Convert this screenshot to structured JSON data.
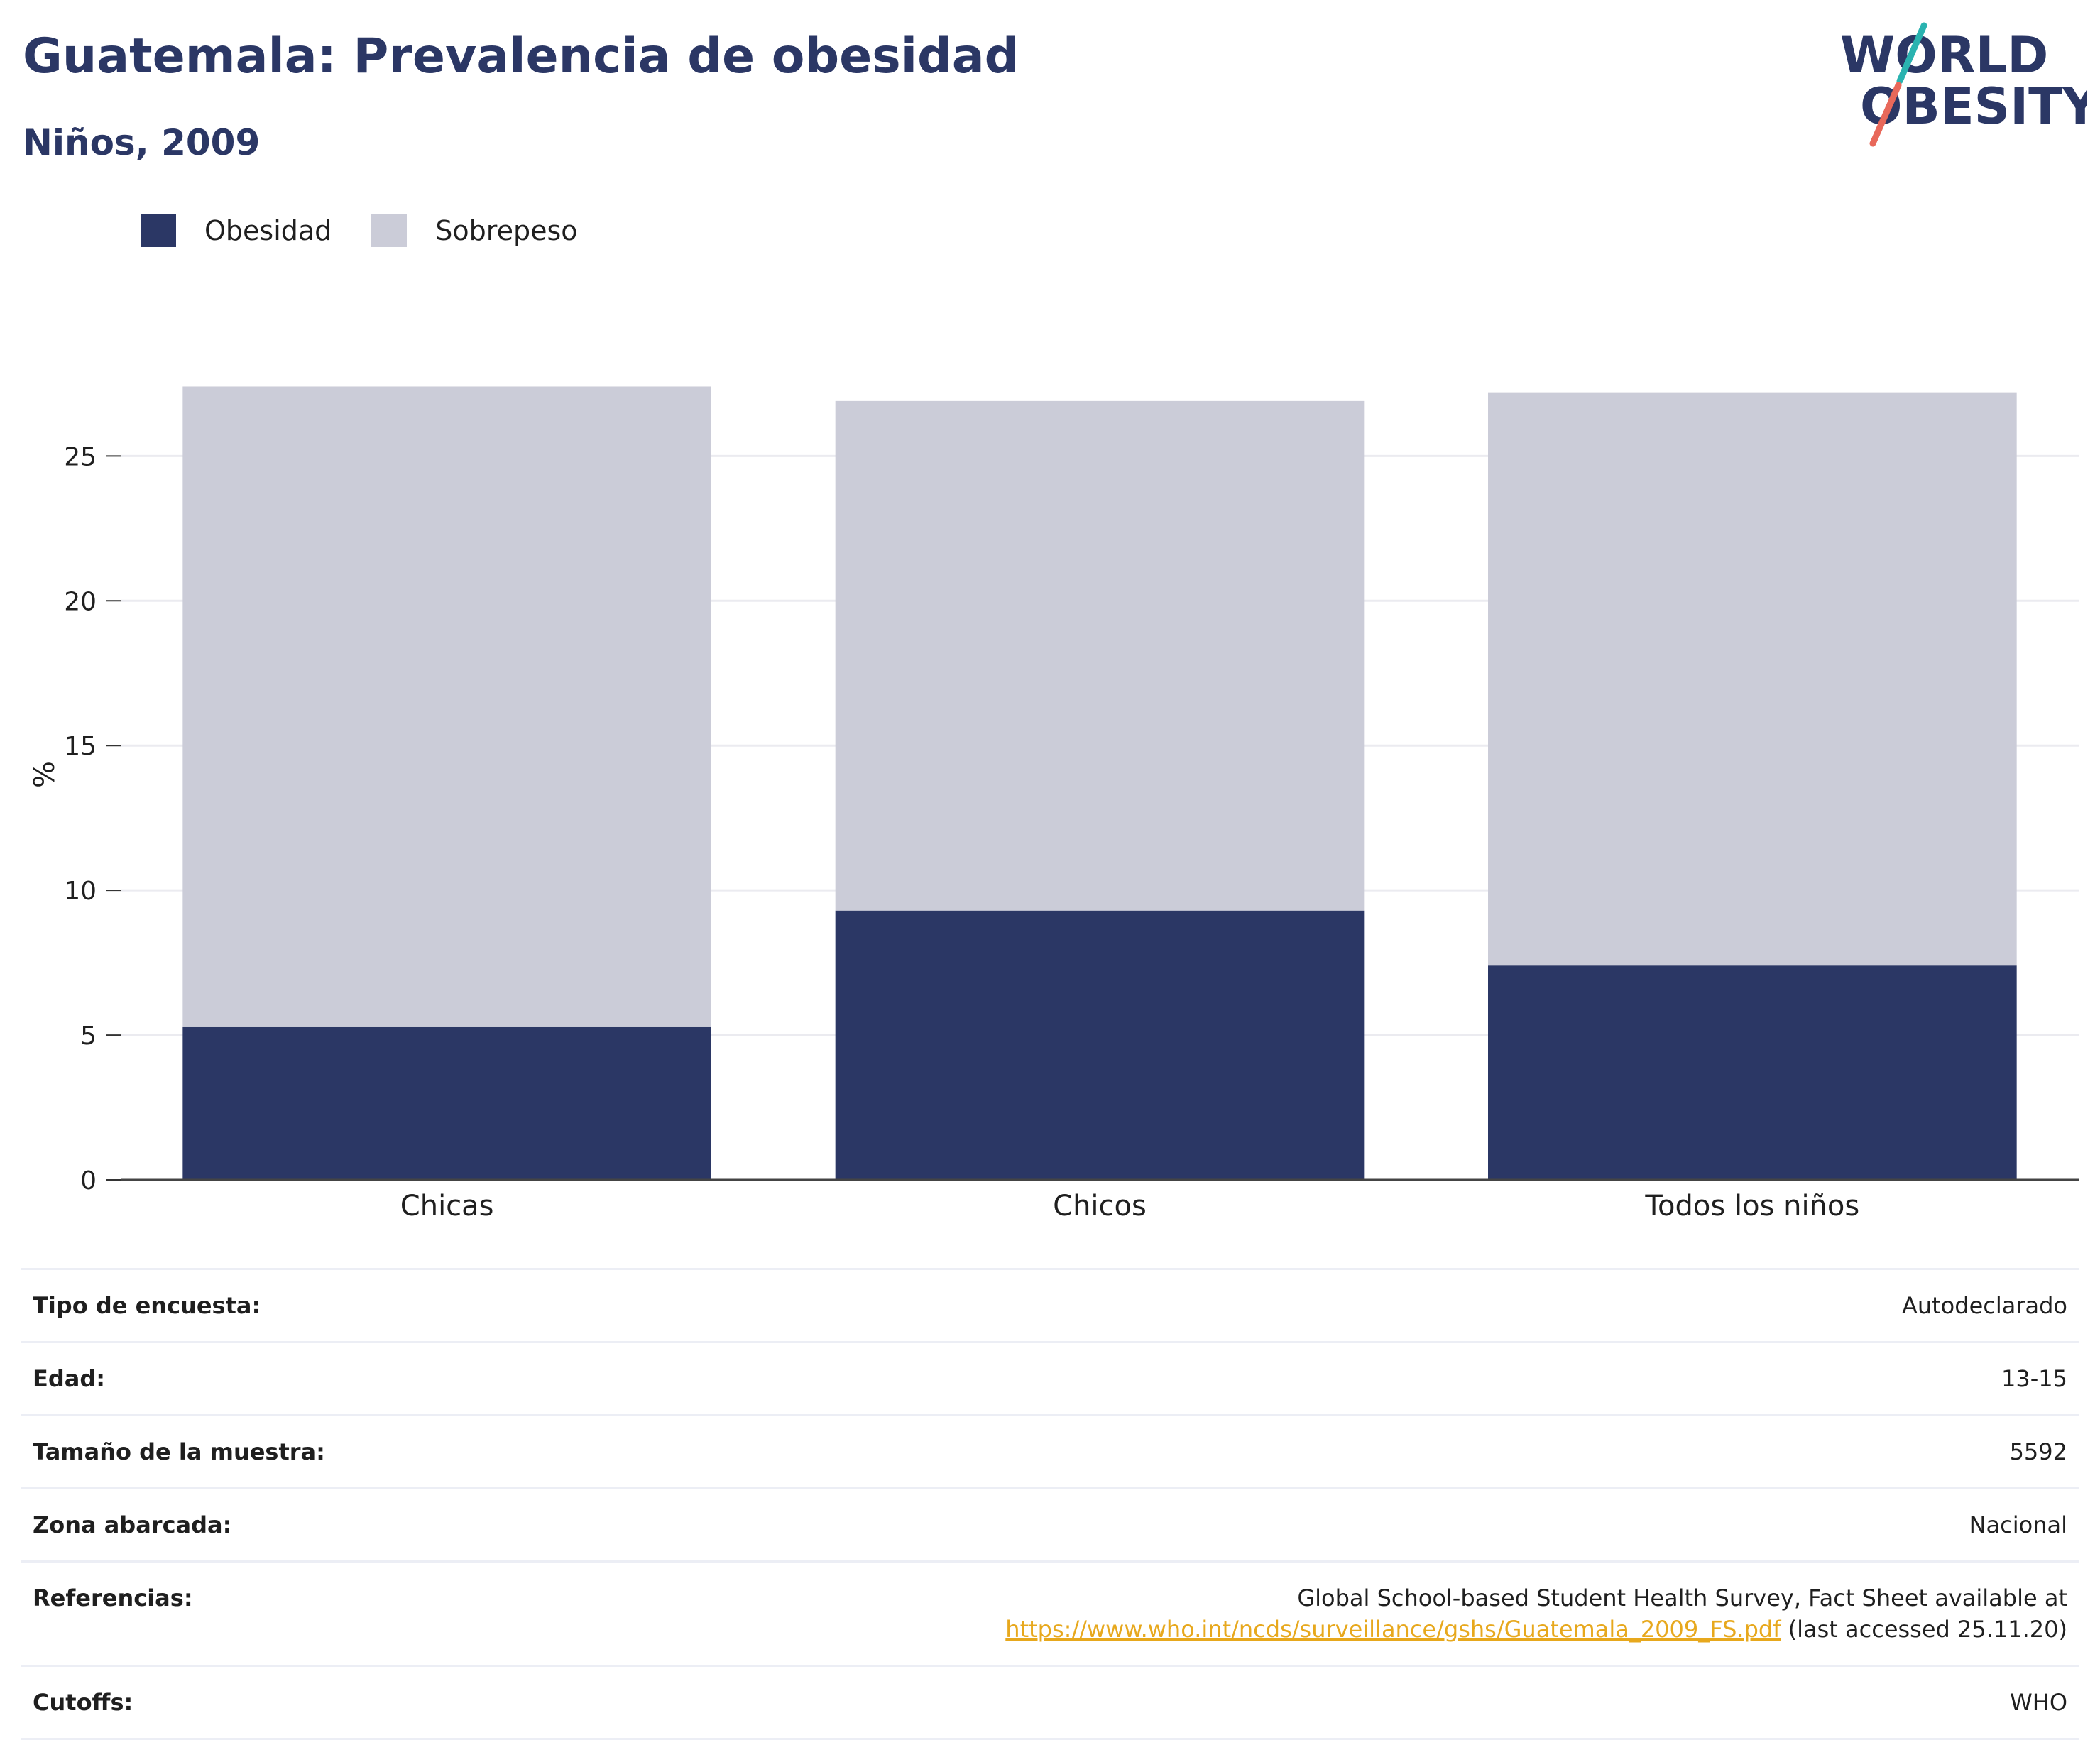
{
  "header": {
    "title": "Guatemala: Prevalencia de obesidad",
    "subtitle": "Niños, 2009"
  },
  "logo": {
    "line1": "WORLD",
    "line2": "OBESITY",
    "colors": {
      "text": "#2b3765",
      "slash_top": "#2ab3b0",
      "slash_bottom": "#e8685a"
    }
  },
  "legend": [
    {
      "label": "Obesidad",
      "color": "#2b3765"
    },
    {
      "label": "Sobrepeso",
      "color": "#cbccd8"
    }
  ],
  "chart_data": {
    "type": "bar",
    "stacked": true,
    "categories": [
      "Chicas",
      "Chicos",
      "Todos los niños"
    ],
    "series": [
      {
        "name": "Obesidad",
        "color": "#2b3765",
        "values": [
          5.3,
          9.3,
          7.4
        ]
      },
      {
        "name": "Sobrepeso",
        "color": "#cbccd8",
        "values": [
          22.1,
          17.6,
          19.8
        ]
      }
    ],
    "ylabel": "%",
    "ylim": [
      0,
      28
    ],
    "yticks": [
      0,
      5,
      10,
      15,
      20,
      25
    ],
    "grid": true,
    "legend_position": "top-left"
  },
  "info": {
    "rows": [
      {
        "key": "Tipo de encuesta:",
        "value": "Autodeclarado"
      },
      {
        "key": "Edad:",
        "value": "13-15"
      },
      {
        "key": "Tamaño de la muestra:",
        "value": "5592"
      },
      {
        "key": "Zona abarcada:",
        "value": "Nacional"
      }
    ],
    "references": {
      "key": "Referencias:",
      "line1": "Global School-based Student Health Survey, Fact Sheet available at",
      "link": "https://www.who.int/ncds/surveillance/gshs/Guatemala_2009_FS.pdf",
      "suffix": " (last accessed 25.11.20)"
    },
    "cutoffs": {
      "key": "Cutoffs:",
      "value": "WHO"
    }
  }
}
